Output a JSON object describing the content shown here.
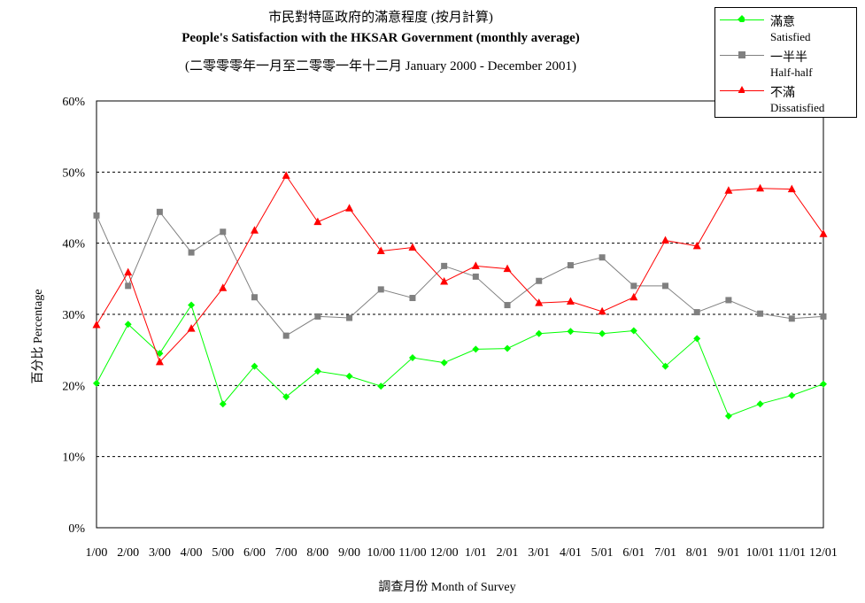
{
  "chart_data": {
    "type": "line",
    "title": "市民對特區政府的滿意程度 (按月計算)",
    "subtitle": "People's Satisfaction with the HKSAR Government (monthly average)",
    "subtitle2": "(二零零零年一月至二零零一年十二月 January 2000 - December 2001)",
    "xlabel": "調查月份 Month of Survey",
    "ylabel": "百分比 Percentage",
    "ylim": [
      0,
      60
    ],
    "yticks": [
      "0%",
      "10%",
      "20%",
      "30%",
      "40%",
      "50%",
      "60%"
    ],
    "grid": true,
    "legend_position": "top-right",
    "categories": [
      "1/00",
      "2/00",
      "3/00",
      "4/00",
      "5/00",
      "6/00",
      "7/00",
      "8/00",
      "9/00",
      "10/00",
      "11/00",
      "12/00",
      "1/01",
      "2/01",
      "3/01",
      "4/01",
      "5/01",
      "6/01",
      "7/01",
      "8/01",
      "9/01",
      "10/01",
      "11/01",
      "12/01"
    ],
    "series": [
      {
        "name": "滿意",
        "name_en": "Satisfied",
        "color": "#00ff00",
        "marker": "diamond",
        "values": [
          20.3,
          28.6,
          24.5,
          31.3,
          17.4,
          22.7,
          18.4,
          22.0,
          21.3,
          19.9,
          23.9,
          23.2,
          25.1,
          25.2,
          27.3,
          27.6,
          27.3,
          27.7,
          22.7,
          26.6,
          15.7,
          17.4,
          18.6,
          20.2
        ]
      },
      {
        "name": "一半半",
        "name_en": "Half-half",
        "color": "#808080",
        "marker": "square",
        "values": [
          43.9,
          34.0,
          44.4,
          38.7,
          41.6,
          32.4,
          27.0,
          29.7,
          29.5,
          33.5,
          32.3,
          36.8,
          35.3,
          31.3,
          34.7,
          36.9,
          38.0,
          34.0,
          34.0,
          30.3,
          32.0,
          30.1,
          29.4,
          29.7
        ]
      },
      {
        "name": "不滿",
        "name_en": "Dissatisfied",
        "color": "#ff0000",
        "marker": "triangle",
        "values": [
          28.5,
          35.9,
          23.3,
          28.0,
          33.7,
          41.8,
          49.5,
          43.0,
          44.9,
          38.9,
          39.4,
          34.6,
          36.8,
          36.4,
          31.6,
          31.8,
          30.4,
          32.4,
          40.4,
          39.6,
          47.4,
          47.7,
          47.6,
          41.3
        ]
      }
    ]
  }
}
